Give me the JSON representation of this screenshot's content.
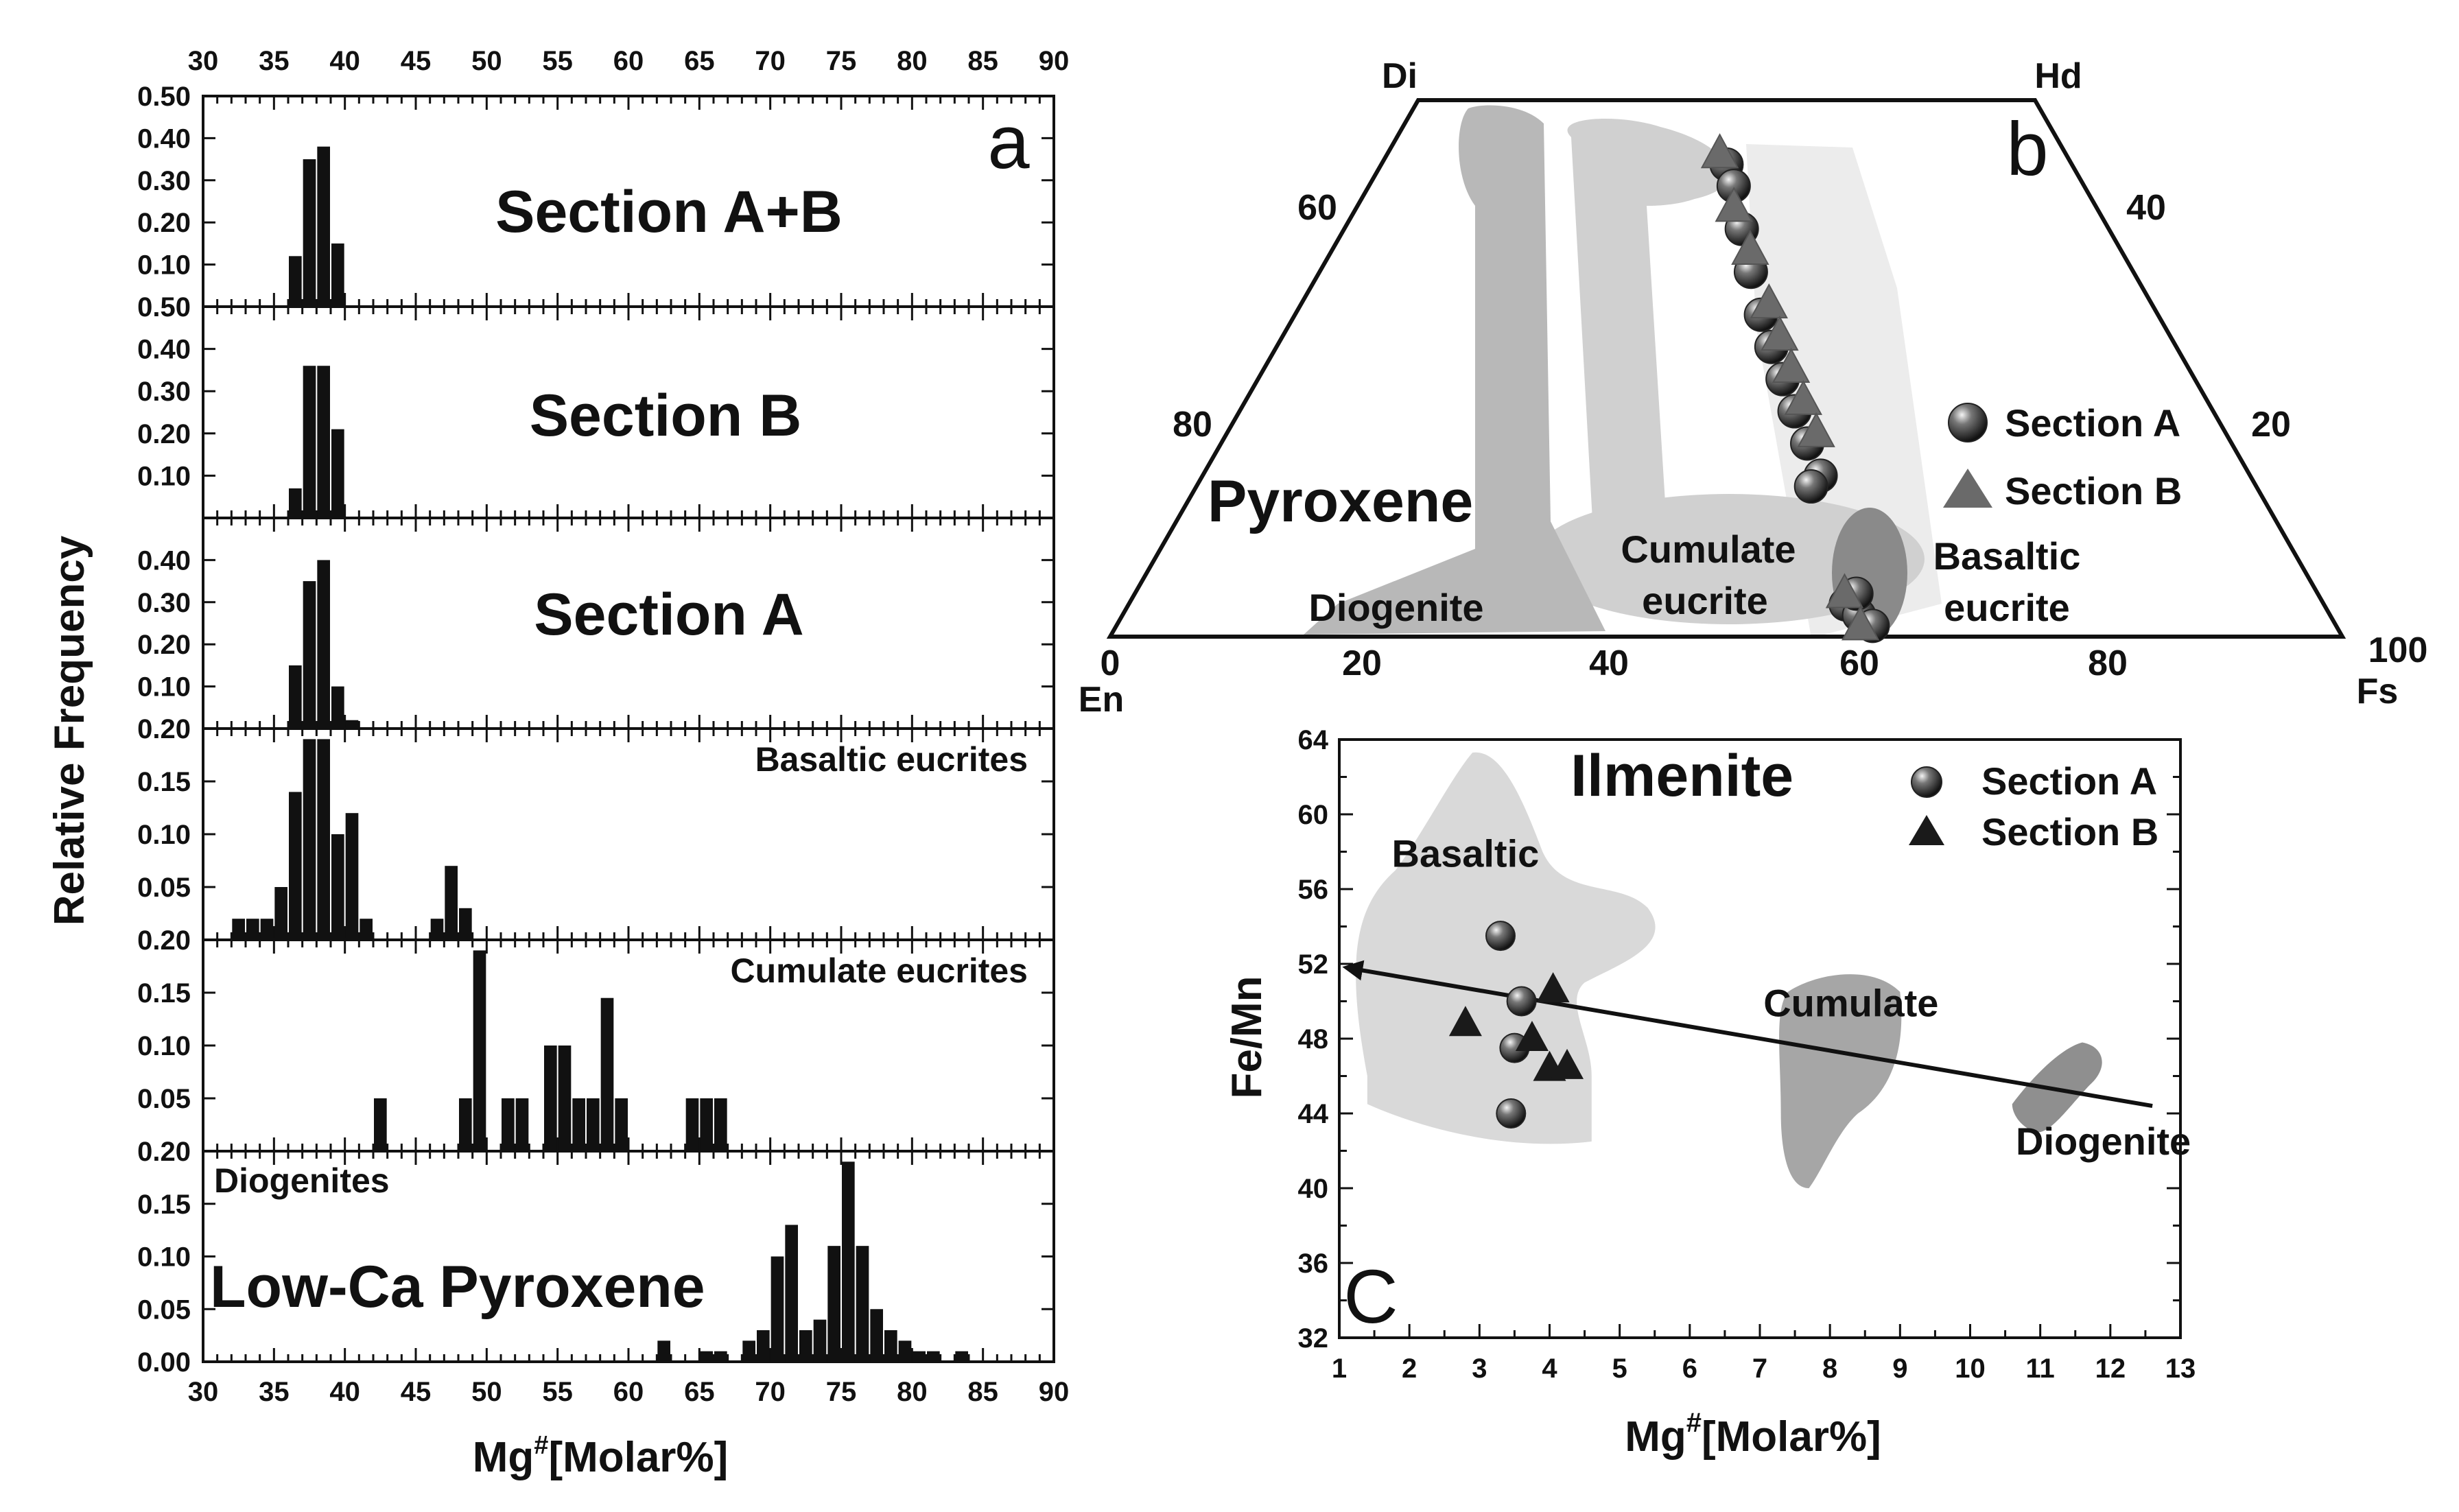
{
  "chart_data": [
    {
      "panel": "a",
      "type": "bar",
      "xlabel": "Mg#[Molar%]",
      "ylabel": "Relative Frequency",
      "xlim": [
        30,
        90
      ],
      "x_ticks": [
        "30",
        "35",
        "40",
        "45",
        "50",
        "55",
        "60",
        "65",
        "70",
        "75",
        "80",
        "85",
        "90"
      ],
      "subplots": [
        {
          "title": "Section A+B",
          "ylim": [
            0,
            0.5
          ],
          "y_ticks": [
            "0.10",
            "0.20",
            "0.30",
            "0.40",
            "0.50"
          ],
          "bins": [
            [
              36.5,
              0.12
            ],
            [
              37.5,
              0.35
            ],
            [
              38.5,
              0.38
            ],
            [
              39.5,
              0.15
            ]
          ]
        },
        {
          "title": "Section B",
          "ylim": [
            0,
            0.5
          ],
          "y_ticks": [
            "0.10",
            "0.20",
            "0.30",
            "0.40",
            "0.50"
          ],
          "bins": [
            [
              36.5,
              0.07
            ],
            [
              37.5,
              0.36
            ],
            [
              38.5,
              0.36
            ],
            [
              39.5,
              0.21
            ]
          ]
        },
        {
          "title": "Section A",
          "ylim": [
            0,
            0.5
          ],
          "y_ticks": [
            "0.10",
            "0.20",
            "0.30",
            "0.40"
          ],
          "bins": [
            [
              36.5,
              0.15
            ],
            [
              37.5,
              0.35
            ],
            [
              38.5,
              0.4
            ],
            [
              39.5,
              0.1
            ],
            [
              40.5,
              0.02
            ]
          ]
        },
        {
          "title": "Basaltic eucrites",
          "ylim": [
            0,
            0.2
          ],
          "y_ticks": [
            "0.05",
            "0.10",
            "0.15",
            "0.20"
          ],
          "bins": [
            [
              32.5,
              0.02
            ],
            [
              33.5,
              0.02
            ],
            [
              34.5,
              0.02
            ],
            [
              35.5,
              0.05
            ],
            [
              36.5,
              0.14
            ],
            [
              37.5,
              0.19
            ],
            [
              38.5,
              0.19
            ],
            [
              39.5,
              0.1
            ],
            [
              40.5,
              0.12
            ],
            [
              41.5,
              0.02
            ],
            [
              46.5,
              0.02
            ],
            [
              47.5,
              0.07
            ],
            [
              48.5,
              0.03
            ]
          ]
        },
        {
          "title": "Cumulate eucrites",
          "ylim": [
            0,
            0.2
          ],
          "y_ticks": [
            "0.05",
            "0.10",
            "0.15",
            "0.20"
          ],
          "bins": [
            [
              42.5,
              0.05
            ],
            [
              48.5,
              0.05
            ],
            [
              49.5,
              0.19
            ],
            [
              51.5,
              0.05
            ],
            [
              52.5,
              0.05
            ],
            [
              54.5,
              0.1
            ],
            [
              55.5,
              0.1
            ],
            [
              56.5,
              0.05
            ],
            [
              57.5,
              0.05
            ],
            [
              58.5,
              0.145
            ],
            [
              59.5,
              0.05
            ],
            [
              64.5,
              0.05
            ],
            [
              65.5,
              0.05
            ],
            [
              66.5,
              0.05
            ]
          ]
        },
        {
          "title": "Low-Ca Pyroxene",
          "subtitle": "Diogenites",
          "ylim": [
            0,
            0.2
          ],
          "y_ticks": [
            "0.00",
            "0.05",
            "0.10",
            "0.15",
            "0.20"
          ],
          "bins": [
            [
              62.5,
              0.02
            ],
            [
              65.5,
              0.01
            ],
            [
              66.5,
              0.01
            ],
            [
              68.5,
              0.02
            ],
            [
              69.5,
              0.03
            ],
            [
              70.5,
              0.1
            ],
            [
              71.5,
              0.13
            ],
            [
              72.5,
              0.03
            ],
            [
              73.5,
              0.04
            ],
            [
              74.5,
              0.11
            ],
            [
              75.5,
              0.19
            ],
            [
              76.5,
              0.11
            ],
            [
              77.5,
              0.05
            ],
            [
              78.5,
              0.03
            ],
            [
              79.5,
              0.02
            ],
            [
              80.5,
              0.01
            ],
            [
              81.5,
              0.01
            ],
            [
              83.5,
              0.01
            ]
          ]
        }
      ],
      "panel_label": "a"
    },
    {
      "panel": "b",
      "type": "scatter",
      "subtype": "ternary-quadrilateral",
      "title": "Pyroxene",
      "corners": {
        "top_left": "Di",
        "top_right": "Hd",
        "bottom_left": "En",
        "bottom_right": "Fs"
      },
      "bottom_ticks": [
        "0",
        "20",
        "40",
        "60",
        "80",
        "100"
      ],
      "left_ticks": [
        "60",
        "80"
      ],
      "right_ticks": [
        "40",
        "20"
      ],
      "regions": [
        "Diogenite",
        "Cumulate eucrite",
        "Basaltic eucrite"
      ],
      "region_labels": {
        "diogenite": "Diogenite",
        "cumulate": [
          "Cumulate",
          "eucrite"
        ],
        "basaltic": [
          "Basaltic",
          "eucrite"
        ]
      },
      "series": [
        {
          "name": "Section A",
          "marker": "sphere",
          "points": [
            [
              50,
              44
            ],
            [
              51,
              42
            ],
            [
              52,
              38
            ],
            [
              53,
              34
            ],
            [
              54,
              30
            ],
            [
              55,
              27
            ],
            [
              56,
              24
            ],
            [
              57,
              21
            ],
            [
              58,
              18
            ],
            [
              59,
              15
            ],
            [
              58,
              14
            ],
            [
              60,
              3
            ],
            [
              61,
              2
            ],
            [
              62,
              1
            ],
            [
              61,
              4
            ]
          ]
        },
        {
          "name": "Section B",
          "marker": "triangle",
          "points": [
            [
              49,
              45
            ],
            [
              51,
              40
            ],
            [
              53,
              36
            ],
            [
              55,
              31
            ],
            [
              56,
              28
            ],
            [
              57,
              25
            ],
            [
              58,
              22
            ],
            [
              59,
              19
            ],
            [
              60,
              4
            ],
            [
              61,
              1
            ]
          ]
        }
      ],
      "panel_label": "b"
    },
    {
      "panel": "c",
      "type": "scatter",
      "title": "Ilmenite",
      "xlabel": "Mg#[Molar%]",
      "ylabel": "Fe/Mn",
      "xlim": [
        1,
        13
      ],
      "ylim": [
        32,
        64
      ],
      "x_ticks": [
        "1",
        "2",
        "3",
        "4",
        "5",
        "6",
        "7",
        "8",
        "9",
        "10",
        "11",
        "12",
        "13"
      ],
      "y_ticks": [
        "32",
        "36",
        "40",
        "44",
        "48",
        "52",
        "56",
        "60",
        "64"
      ],
      "regions": [
        "Basaltic",
        "Cumulate",
        "Diogenite"
      ],
      "series": [
        {
          "name": "Section A",
          "marker": "sphere",
          "points": [
            [
              3.3,
              53.5
            ],
            [
              3.6,
              50
            ],
            [
              3.5,
              47.5
            ],
            [
              3.45,
              44
            ]
          ]
        },
        {
          "name": "Section B",
          "marker": "triangle",
          "points": [
            [
              2.8,
              48.8
            ],
            [
              4.05,
              50.6
            ],
            [
              3.75,
              48
            ],
            [
              4.0,
              46.4
            ],
            [
              4.25,
              46.5
            ]
          ]
        }
      ],
      "trend_line": {
        "from": [
          12.6,
          44.4
        ],
        "to": [
          1.1,
          51.8
        ]
      },
      "panel_label": "C"
    }
  ]
}
